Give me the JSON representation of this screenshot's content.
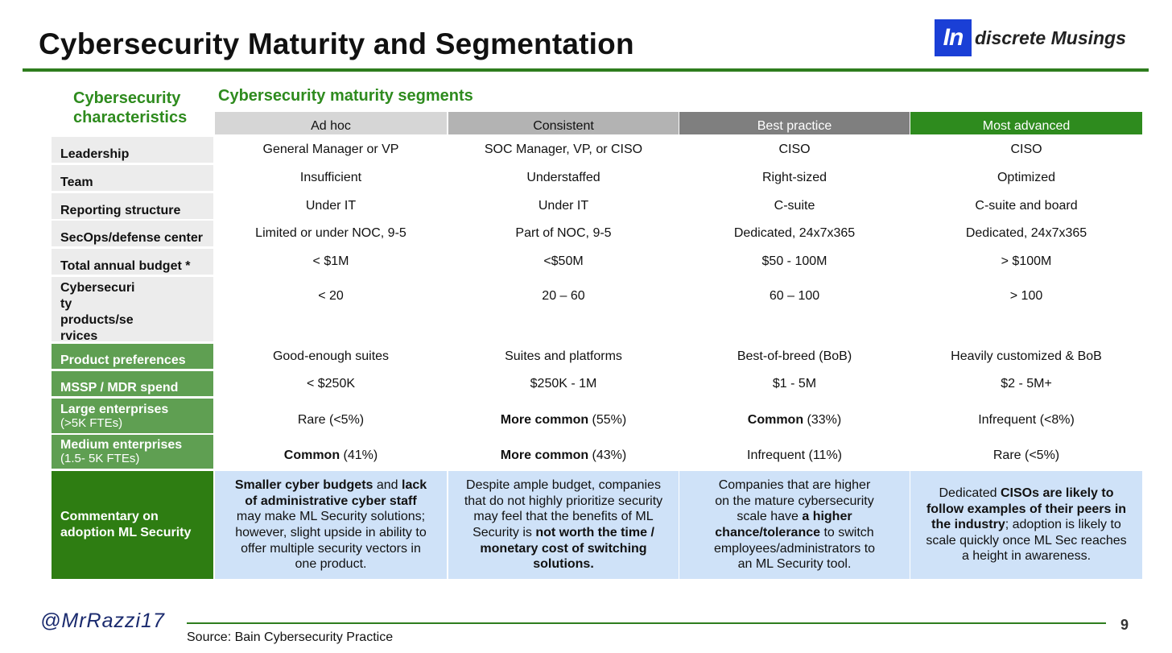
{
  "title": "Cybersecurity Maturity and Segmentation",
  "logo": {
    "mark": "In",
    "text": "discrete Musings",
    "color": "#1a3fd6"
  },
  "characteristics_heading": [
    "Cybersecurity",
    "characteristics"
  ],
  "segments_heading": "Cybersecurity maturity segments",
  "columns": [
    {
      "label": "Ad hoc",
      "bg": "#d6d6d6",
      "fg": "#111111"
    },
    {
      "label": "Consistent",
      "bg": "#b3b3b3",
      "fg": "#111111"
    },
    {
      "label": "Best practice",
      "bg": "#7f7f7f",
      "fg": "#ffffff"
    },
    {
      "label": "Most advanced",
      "bg": "#2e8b1e",
      "fg": "#ffffff"
    }
  ],
  "rows": [
    {
      "label": "Leadership",
      "cells": [
        [
          "General Manager or VP"
        ],
        [
          "SOC Manager, VP, or CISO"
        ],
        [
          "CISO"
        ],
        [
          "CISO"
        ]
      ]
    },
    {
      "label": "Team",
      "cells": [
        [
          "Insufficient"
        ],
        [
          "Understaffed"
        ],
        [
          "Right-sized"
        ],
        [
          "Optimized"
        ]
      ]
    },
    {
      "label": "Reporting structure",
      "cells": [
        [
          "Under IT"
        ],
        [
          "Under IT"
        ],
        [
          "C-suite"
        ],
        [
          "C-suite and board"
        ]
      ]
    },
    {
      "label": "SecOps/defense center",
      "cells": [
        [
          "Limited or under NOC, 9-5"
        ],
        [
          "Part of NOC, 9-5"
        ],
        [
          "Dedicated, 24x7x365"
        ],
        [
          "Dedicated, 24x7x365"
        ]
      ]
    },
    {
      "label": "Total annual budget *",
      "cells": [
        [
          "< $1M"
        ],
        [
          "<$50M"
        ],
        [
          "$50 - 100M"
        ],
        [
          "> $100M"
        ]
      ]
    },
    {
      "label_lines": [
        "Cybersecuri",
        "ty",
        "products/se",
        "rvices"
      ],
      "cells": [
        [
          "< 20"
        ],
        [
          "20 – 60"
        ],
        [
          "60 – 100"
        ],
        [
          "> 100"
        ]
      ]
    },
    {
      "label": "Product preferences",
      "cells": [
        [
          "Good-enough suites"
        ],
        [
          "Suites and platforms"
        ],
        [
          "Best-of-breed (BoB)"
        ],
        [
          "Heavily customized & BoB"
        ]
      ]
    },
    {
      "label": "MSSP / MDR spend",
      "cells": [
        [
          "< $250K"
        ],
        [
          "$250K - 1M"
        ],
        [
          "$1 - 5M"
        ],
        [
          "$2 - 5M+"
        ]
      ]
    },
    {
      "label": "Large enterprises",
      "sublabel": "(>5K FTEs)",
      "cells": [
        [
          "",
          "Rare (<5%)"
        ],
        [
          "More common",
          " (55%)"
        ],
        [
          "Common",
          " (33%)"
        ],
        [
          "",
          "Infrequent (<8%)"
        ]
      ]
    },
    {
      "label": "Medium enterprises",
      "sublabel": "(1.5-  5K FTEs)",
      "cells": [
        [
          "Common",
          " (41%)"
        ],
        [
          "More common",
          " (43%)"
        ],
        [
          "",
          "Infrequent (11%)"
        ],
        [
          "",
          "Rare (<5%)"
        ]
      ]
    }
  ],
  "commentary": {
    "label_lines": [
      "Commentary on",
      "adoption ML Security"
    ],
    "bg": "#cfe2f8",
    "cells": [
      [
        [
          "b",
          "Smaller cyber budgets"
        ],
        [
          "t",
          " and "
        ],
        [
          "b",
          "lack"
        ],
        [
          "br"
        ],
        [
          "b",
          "of  administrative cyber staff"
        ],
        [
          "br"
        ],
        [
          "t",
          "may make ML Security solutions;"
        ],
        [
          "br"
        ],
        [
          "t",
          "however, slight upside in ability to"
        ],
        [
          "br"
        ],
        [
          "t",
          "offer  multiple security vectors in"
        ],
        [
          "br"
        ],
        [
          "t",
          "one product."
        ]
      ],
      [
        [
          "t",
          "Despite ample budget, companies"
        ],
        [
          "br"
        ],
        [
          "t",
          "that do not highly prioritize security"
        ],
        [
          "br"
        ],
        [
          "t",
          "may feel that the benefits of ML"
        ],
        [
          "br"
        ],
        [
          "t",
          "Security is "
        ],
        [
          "b",
          "not worth the time /"
        ],
        [
          "br"
        ],
        [
          "b",
          "monetary cost of switching"
        ],
        [
          "br"
        ],
        [
          "b",
          "solutions."
        ]
      ],
      [
        [
          "t",
          "Companies that are higher"
        ],
        [
          "br"
        ],
        [
          "t",
          "on the mature cybersecurity"
        ],
        [
          "br"
        ],
        [
          "t",
          "scale have "
        ],
        [
          "b",
          "a higher"
        ],
        [
          "br"
        ],
        [
          "b",
          "chance/tolerance"
        ],
        [
          "t",
          " to switch"
        ],
        [
          "br"
        ],
        [
          "t",
          "employees/administrators to"
        ],
        [
          "br"
        ],
        [
          "t",
          "an ML Security tool."
        ]
      ],
      [
        [
          "t",
          "Dedicated "
        ],
        [
          "b",
          "CISOs are likely to"
        ],
        [
          "br"
        ],
        [
          "b",
          "follow examples of their peers in"
        ],
        [
          "br"
        ],
        [
          "b",
          "the industry"
        ],
        [
          "t",
          "; adoption is likely to"
        ],
        [
          "br"
        ],
        [
          "t",
          "scale quickly once ML Sec reaches"
        ],
        [
          "br"
        ],
        [
          "t",
          "a height in awareness."
        ]
      ]
    ]
  },
  "footer": {
    "handle": "@MrRazzi17",
    "source": "Source: Bain Cybersecurity Practice",
    "page_number": "9"
  }
}
